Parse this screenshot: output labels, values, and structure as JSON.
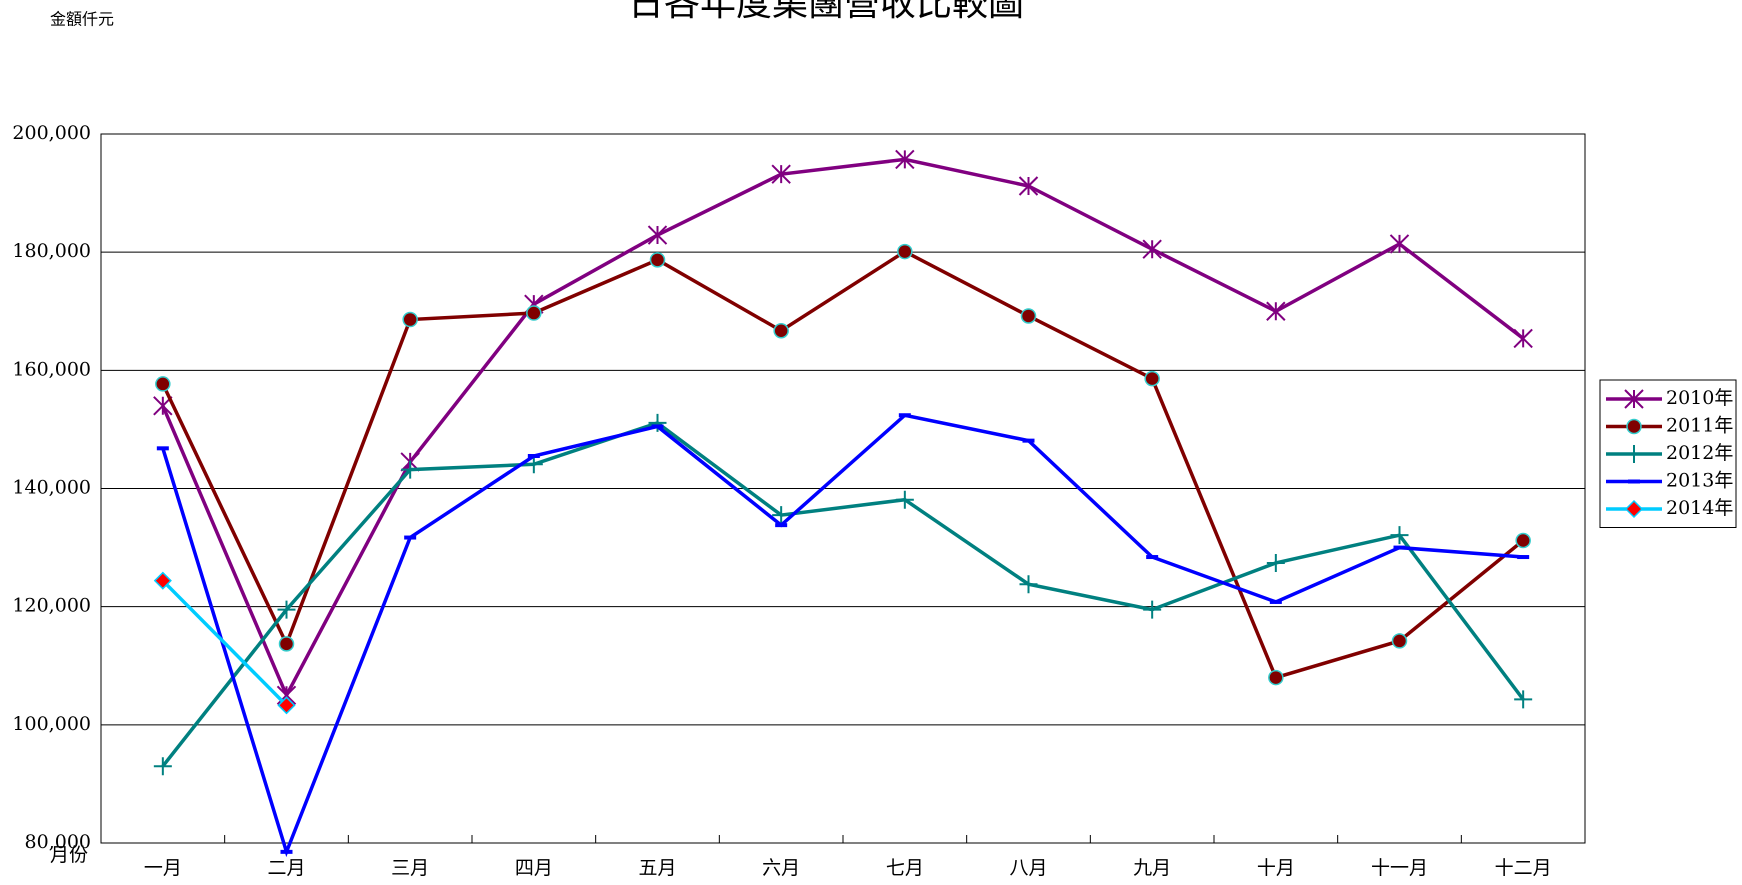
{
  "chart_data": {
    "type": "line",
    "title": "日各年度集團營收比較圖",
    "y_label": "金額仟元",
    "x_label": "月份",
    "categories": [
      "一月",
      "二月",
      "三月",
      "四月",
      "五月",
      "六月",
      "七月",
      "八月",
      "九月",
      "十月",
      "十一月",
      "十二月"
    ],
    "series": [
      {
        "name": "2010年",
        "color": "#800080",
        "marker": "star",
        "values": [
          154000,
          105000,
          144500,
          171200,
          182900,
          193200,
          195700,
          191200,
          180500,
          170000,
          181400,
          165400
        ]
      },
      {
        "name": "2011年",
        "color": "#800000",
        "marker": "circle",
        "values": [
          157700,
          113700,
          168600,
          169700,
          178700,
          166700,
          180100,
          169200,
          158600,
          108000,
          114200,
          131200
        ]
      },
      {
        "name": "2012年",
        "color": "#008080",
        "marker": "plus",
        "values": [
          93000,
          119500,
          143200,
          144100,
          151100,
          135500,
          138100,
          123800,
          119500,
          127400,
          132100,
          104300
        ]
      },
      {
        "name": "2013年",
        "color": "#0000ff",
        "marker": "dash",
        "values": [
          146800,
          78500,
          131700,
          145500,
          150500,
          133800,
          152400,
          148100,
          128400,
          120800,
          130000,
          128400
        ]
      },
      {
        "name": "2014年",
        "color": "#00ccff",
        "marker": "diamond",
        "values": [
          124400,
          103300,
          null,
          null,
          null,
          null,
          null,
          null,
          null,
          null,
          null,
          null
        ]
      }
    ],
    "ylim": [
      80000,
      200000
    ],
    "yticks": [
      {
        "value": 80000,
        "label": "80,000"
      },
      {
        "value": 100000,
        "label": "100,000"
      },
      {
        "value": 120000,
        "label": "120,000"
      },
      {
        "value": 140000,
        "label": "140,000"
      },
      {
        "value": 160000,
        "label": "160,000"
      },
      {
        "value": 180000,
        "label": "180,000"
      },
      {
        "value": 200000,
        "label": "200,000"
      }
    ],
    "grid": true,
    "legend": "right"
  }
}
